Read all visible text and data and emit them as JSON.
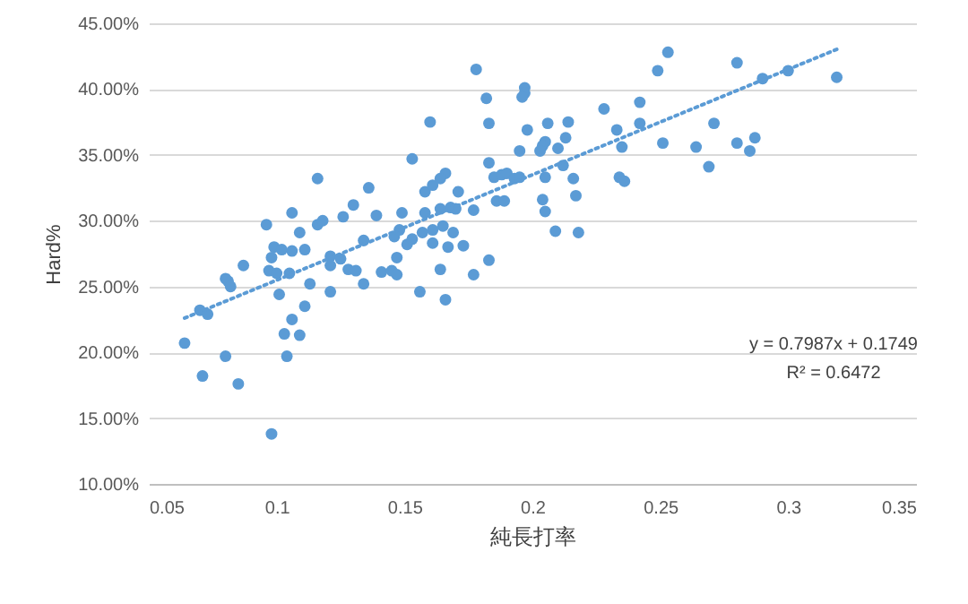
{
  "chart_data": {
    "type": "scatter",
    "xlabel": "純長打率",
    "ylabel": "Hard%",
    "xlim": [
      0.05,
      0.35
    ],
    "xticks": [
      0.05,
      0.1,
      0.15,
      0.2,
      0.25,
      0.3,
      0.35
    ],
    "ylim": [
      10,
      45
    ],
    "yticks": [
      {
        "value": 10,
        "label": "10.00%"
      },
      {
        "value": 15,
        "label": "15.00%"
      },
      {
        "value": 20,
        "label": "20.00%"
      },
      {
        "value": 25,
        "label": "25.00%"
      },
      {
        "value": 30,
        "label": "30.00%"
      },
      {
        "value": 35,
        "label": "35.00%"
      },
      {
        "value": 40,
        "label": "40.00%"
      },
      {
        "value": 45,
        "label": "45.00%"
      }
    ],
    "grid": "y",
    "annotations": [
      "y = 0.7987x + 0.1749",
      "R² = 0.6472"
    ],
    "series": [
      {
        "color": "#5b9bd5",
        "marker": "circle",
        "x": [
          0.178,
          0.16,
          0.153,
          0.116,
          0.136,
          0.166,
          0.158,
          0.161,
          0.164,
          0.171,
          0.096,
          0.106,
          0.116,
          0.118,
          0.126,
          0.13,
          0.139,
          0.149,
          0.158,
          0.164,
          0.168,
          0.17,
          0.177,
          0.109,
          0.099,
          0.102,
          0.106,
          0.111,
          0.098,
          0.087,
          0.097,
          0.1,
          0.105,
          0.121,
          0.125,
          0.121,
          0.128,
          0.131,
          0.134,
          0.141,
          0.145,
          0.147,
          0.147,
          0.146,
          0.148,
          0.151,
          0.153,
          0.157,
          0.161,
          0.161,
          0.165,
          0.164,
          0.167,
          0.169,
          0.173,
          0.177,
          0.081,
          0.08,
          0.082,
          0.113,
          0.134,
          0.101,
          0.121,
          0.156,
          0.166,
          0.064,
          0.07,
          0.073,
          0.071,
          0.08,
          0.085,
          0.098,
          0.103,
          0.106,
          0.109,
          0.104,
          0.111,
          0.253,
          0.249,
          0.28,
          0.3,
          0.29,
          0.319,
          0.197,
          0.197,
          0.196,
          0.182,
          0.228,
          0.242,
          0.183,
          0.206,
          0.214,
          0.198,
          0.233,
          0.242,
          0.271,
          0.205,
          0.204,
          0.213,
          0.203,
          0.21,
          0.195,
          0.235,
          0.251,
          0.264,
          0.28,
          0.287,
          0.285,
          0.269,
          0.183,
          0.212,
          0.185,
          0.188,
          0.19,
          0.193,
          0.195,
          0.205,
          0.216,
          0.234,
          0.236,
          0.186,
          0.189,
          0.204,
          0.217,
          0.205,
          0.209,
          0.218,
          0.183
        ],
        "values": [
          41.5,
          37.5,
          34.7,
          33.2,
          32.5,
          33.6,
          32.2,
          32.7,
          33.2,
          32.2,
          29.7,
          30.6,
          29.7,
          30.0,
          30.3,
          31.2,
          30.4,
          30.6,
          30.6,
          30.9,
          31.0,
          30.9,
          30.8,
          29.1,
          28.0,
          27.8,
          27.7,
          27.8,
          27.2,
          26.6,
          26.2,
          26.0,
          26.0,
          27.3,
          27.1,
          26.6,
          26.3,
          26.2,
          28.5,
          26.1,
          26.2,
          25.9,
          27.2,
          28.8,
          29.3,
          28.2,
          28.6,
          29.1,
          28.3,
          29.3,
          29.6,
          26.3,
          28.0,
          29.1,
          28.1,
          25.9,
          25.4,
          25.6,
          25.0,
          25.2,
          25.2,
          24.4,
          24.6,
          24.6,
          24.0,
          20.7,
          23.2,
          22.9,
          18.2,
          19.7,
          17.6,
          13.8,
          21.4,
          22.5,
          21.3,
          19.7,
          23.5,
          42.8,
          41.4,
          42.0,
          41.4,
          40.8,
          40.9,
          40.1,
          39.7,
          39.4,
          39.3,
          38.5,
          39.0,
          37.4,
          37.4,
          37.5,
          36.9,
          36.9,
          37.4,
          37.4,
          36.0,
          35.7,
          36.3,
          35.3,
          35.5,
          35.3,
          35.6,
          35.9,
          35.6,
          35.9,
          36.3,
          35.3,
          34.1,
          34.4,
          34.2,
          33.3,
          33.5,
          33.6,
          33.2,
          33.3,
          33.3,
          33.2,
          33.3,
          33.0,
          31.5,
          31.5,
          31.6,
          31.9,
          30.7,
          29.2,
          29.1,
          27.0
        ]
      },
      {
        "type": "line",
        "color": "#5b9bd5",
        "line_style": "dotted",
        "x": [
          0.064,
          0.32
        ],
        "values": [
          22.6,
          43.1
        ]
      }
    ]
  }
}
